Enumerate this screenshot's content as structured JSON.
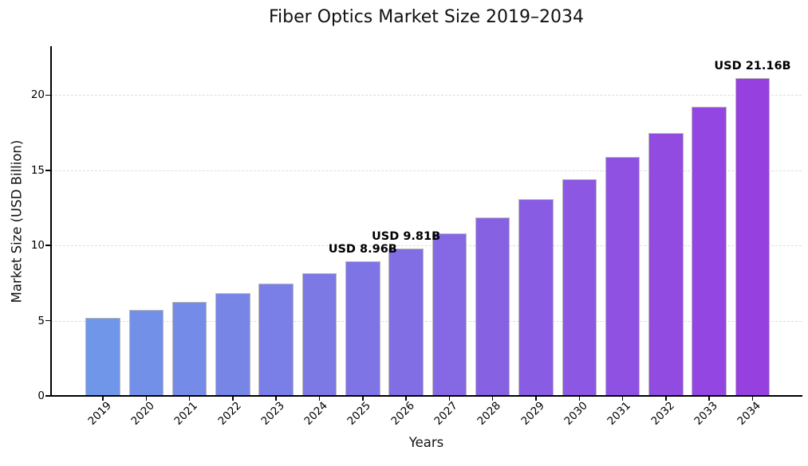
{
  "chart_data": {
    "type": "bar",
    "title": "Fiber Optics Market Size 2019–2034",
    "xlabel": "Years",
    "ylabel": "Market Size (USD Billion)",
    "categories": [
      "2019",
      "2020",
      "2021",
      "2022",
      "2023",
      "2024",
      "2025",
      "2026",
      "2027",
      "2028",
      "2029",
      "2030",
      "2031",
      "2032",
      "2033",
      "2034"
    ],
    "values": [
      5.2,
      5.7,
      6.24,
      6.83,
      7.48,
      8.18,
      8.96,
      9.81,
      10.8,
      11.89,
      13.09,
      14.41,
      15.87,
      17.47,
      19.23,
      21.16
    ],
    "annotations": [
      {
        "year": "2025",
        "label": "USD 8.96B"
      },
      {
        "year": "2026",
        "label": "USD 9.81B"
      },
      {
        "year": "2034",
        "label": "USD 21.16B"
      }
    ],
    "yticks": [
      0,
      5,
      10,
      15,
      20
    ],
    "ylim": [
      0,
      23.2
    ],
    "grid": "horizontal-dashed",
    "legend": "none",
    "colors": {
      "bar_start": "#6F96E8",
      "bar_end": "#9640E0",
      "bar_edge": "#B8B8BC",
      "gridline": "#DCDCDC",
      "axis": "#000000",
      "background": "#FFFFFF"
    }
  }
}
